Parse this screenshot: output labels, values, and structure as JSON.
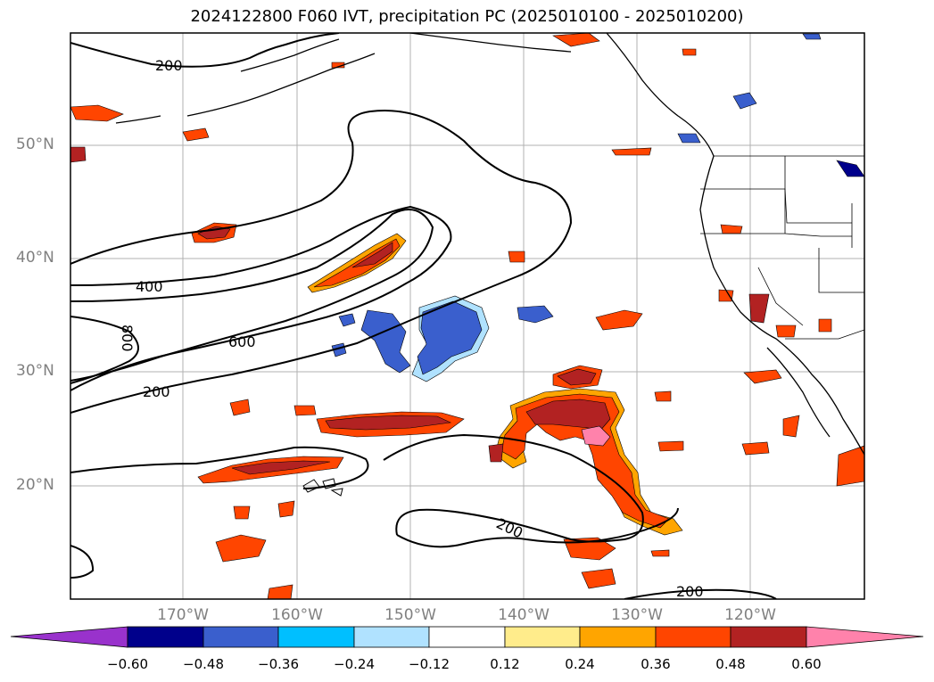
{
  "title": "2024122800 F060 IVT, precipitation PC (2025010100 - 2025010200)",
  "lat_labels": [
    "50°N",
    "40°N",
    "30°N",
    "20°N"
  ],
  "lon_labels": [
    "170°W",
    "160°W",
    "150°W",
    "140°W",
    "130°W",
    "120°W"
  ],
  "contour_labels": [
    "200",
    "400",
    "800",
    "600",
    "200",
    "200",
    "200"
  ],
  "colorbar": {
    "ticks": [
      "−0.60",
      "−0.48",
      "−0.36",
      "−0.24",
      "−0.12",
      "0.12",
      "0.24",
      "0.36",
      "0.48",
      "0.60"
    ],
    "colors": [
      "#9932cc",
      "#00008b",
      "#3a5fcd",
      "#00bfff",
      "#b0e2ff",
      "#ffffff",
      "#ffec8b",
      "#ffa500",
      "#ff4500",
      "#b22222",
      "#ff82ab"
    ]
  }
}
